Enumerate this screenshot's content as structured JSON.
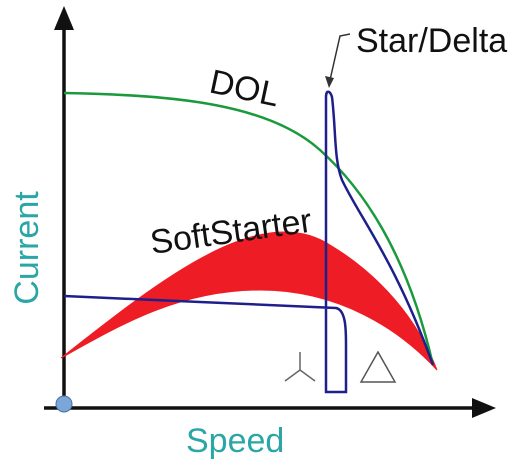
{
  "labels": {
    "x_axis": "Speed",
    "y_axis": "Current",
    "dol": "DOL",
    "soft_starter": "SoftStarter",
    "star_delta": "Star/Delta"
  },
  "colors": {
    "axis": "#111111",
    "axis_label": "#2aa6a6",
    "dol": "#1a9a3c",
    "star_delta": "#1f1f8c",
    "soft_starter_fill": "#ee1c24",
    "origin_dot": "#7aa6d8"
  },
  "icons": {
    "star": "star-connection-icon",
    "delta": "delta-connection-icon"
  }
}
